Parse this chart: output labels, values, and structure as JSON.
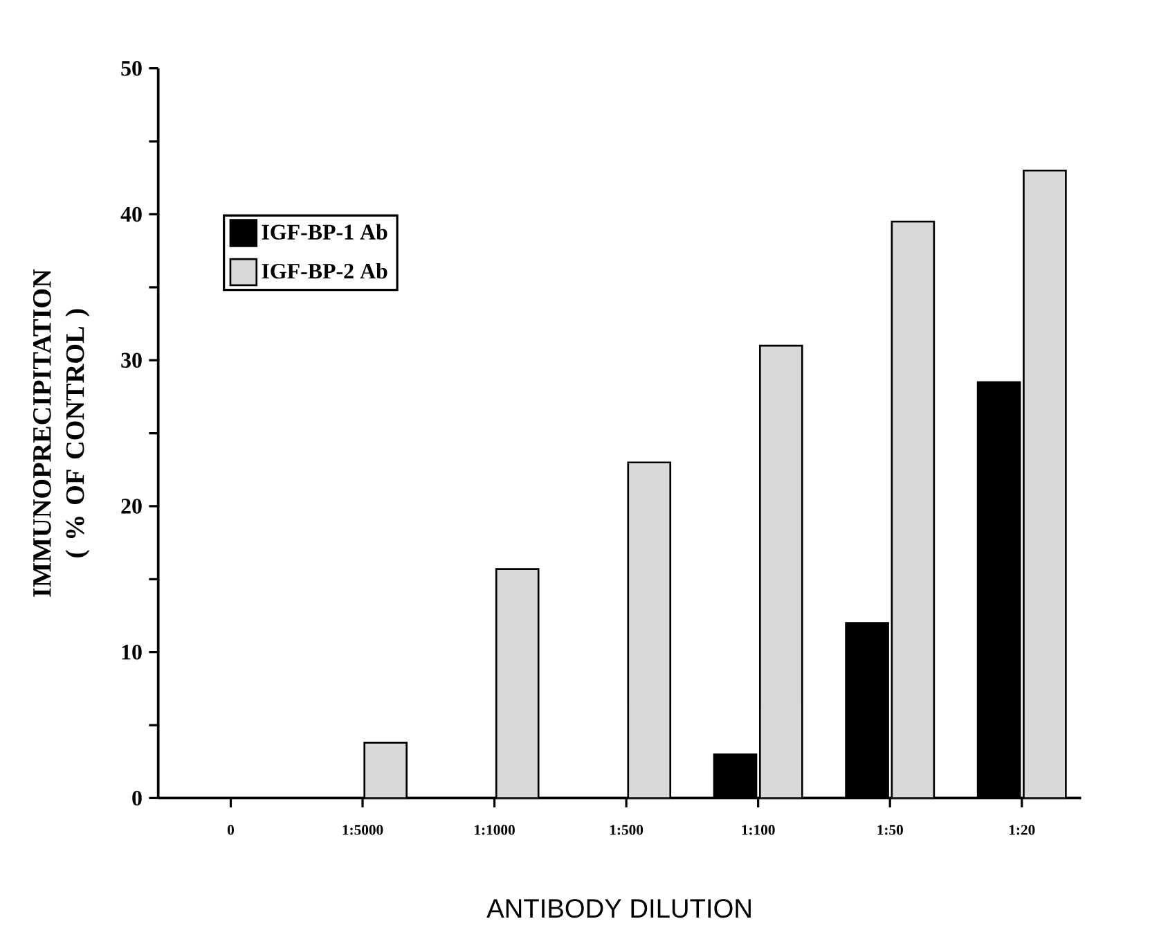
{
  "chart_data": {
    "type": "bar",
    "xlabel": "ANTIBODY DILUTION",
    "ylabel": "IMMUNOPRECIPITATION ( % OF CONTROL )",
    "categories": [
      "0",
      "1:5000",
      "1:1000",
      "1:500",
      "1:100",
      "1:50",
      "1:20"
    ],
    "series": [
      {
        "name": "IGF-BP-1 Ab",
        "color": "#000000",
        "values": [
          0,
          0,
          0,
          0,
          3,
          12,
          28.5
        ]
      },
      {
        "name": "IGF-BP-2 Ab",
        "color": "#d9d9d9",
        "values": [
          0,
          3.8,
          15.7,
          23,
          31,
          39.5,
          43
        ]
      }
    ],
    "ylim": [
      0,
      50
    ],
    "yticks": [
      0,
      {
        "value": 5,
        "label": null
      },
      10,
      {
        "value": 15,
        "label": null
      },
      20,
      {
        "value": 25,
        "label": null
      },
      30,
      {
        "value": 35,
        "label": null
      },
      40,
      {
        "value": 45,
        "label": null
      },
      50
    ],
    "grid": false,
    "legend": "top left"
  }
}
